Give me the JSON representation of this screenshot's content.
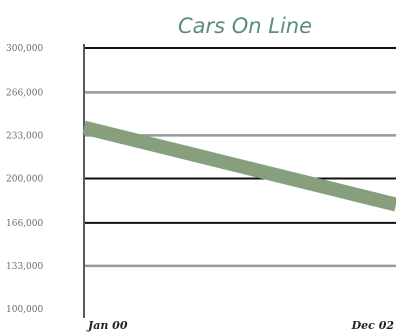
{
  "chart_data": {
    "type": "line",
    "title": "Cars On Line",
    "xlabel": "",
    "ylabel": "",
    "x_tick_labels": [
      "Jan 00",
      "Dec 02"
    ],
    "y_tick_labels": [
      "100,000",
      "133,000",
      "166,000",
      "200,000",
      "233,000",
      "266,000",
      "300,000"
    ],
    "y_ticks": [
      100000,
      133000,
      166000,
      200000,
      233000,
      266000,
      300000
    ],
    "ylim": [
      100000,
      300000
    ],
    "grid": true,
    "gridline_style": {
      "100000": "gray",
      "133000": "gray",
      "166000": "black",
      "200000": "black",
      "233000": "gray",
      "266000": "gray",
      "300000": "black"
    },
    "series": [
      {
        "x": [
          "Jan 00",
          "Dec 02"
        ],
        "values": [
          239000,
          180000
        ],
        "color": "#879f7d"
      }
    ]
  }
}
